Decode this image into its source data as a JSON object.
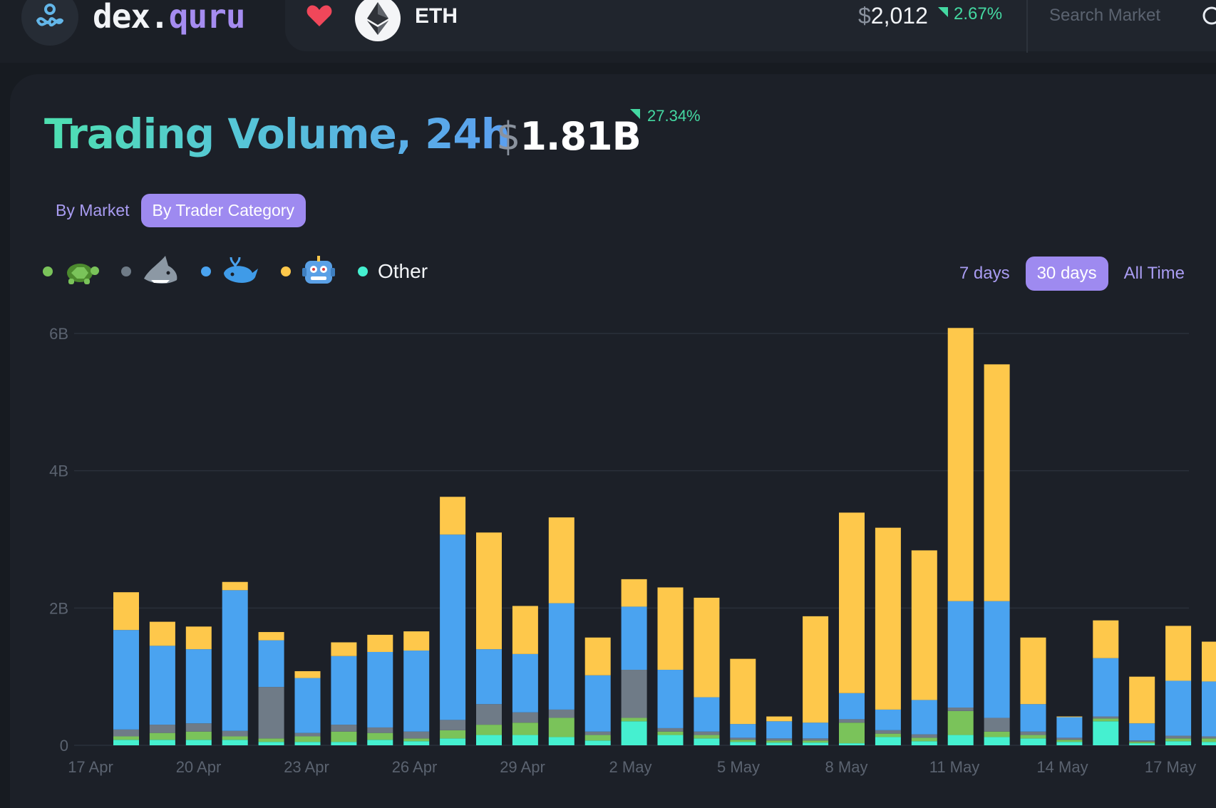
{
  "header": {
    "brand_part1": "dex.",
    "brand_part2": "quru",
    "token_symbol": "ETH",
    "price_currency": "$",
    "price_value": "2,012",
    "price_change": "2.67%",
    "search_placeholder": "Search Market"
  },
  "summary": {
    "title": "Trading Volume, 24h",
    "volume_currency": "$",
    "volume_value": "1.81B",
    "volume_change": "27.34%"
  },
  "view_tabs": [
    {
      "label": "By Market",
      "active": false
    },
    {
      "label": "By Trader Category",
      "active": true
    }
  ],
  "legend": [
    {
      "icon": "turtle-icon",
      "color": "#7ac35a"
    },
    {
      "icon": "shark-icon",
      "color": "#6f7b87"
    },
    {
      "icon": "whale-icon",
      "color": "#4aa3f0"
    },
    {
      "icon": "robot-icon",
      "color": "#fec84b"
    },
    {
      "label": "Other",
      "color": "#45f0d0"
    }
  ],
  "ranges": [
    {
      "label": "7 days",
      "active": false
    },
    {
      "label": "30 days",
      "active": true
    },
    {
      "label": "All Time",
      "active": false
    }
  ],
  "colors": {
    "other": "#45f0d0",
    "turtle": "#7ac35a",
    "shark": "#6f7b87",
    "whale": "#4aa3f0",
    "robot": "#fec84b",
    "positive": "#44d9a2",
    "accent": "#9e8af0"
  },
  "chart_data": {
    "type": "bar",
    "stacked": true,
    "y_ticks": [
      "0",
      "2B",
      "4B",
      "6B"
    ],
    "ylim": [
      0,
      6
    ],
    "grid": true,
    "x_tick_labels": [
      "17 Apr",
      "20 Apr",
      "23 Apr",
      "26 Apr",
      "29 Apr",
      "2 May",
      "5 May",
      "8 May",
      "11 May",
      "14 May",
      "17 May"
    ],
    "categories": [
      "17 Apr",
      "18 Apr",
      "19 Apr",
      "20 Apr",
      "21 Apr",
      "22 Apr",
      "23 Apr",
      "24 Apr",
      "25 Apr",
      "26 Apr",
      "27 Apr",
      "28 Apr",
      "29 Apr",
      "30 Apr",
      "1 May",
      "2 May",
      "3 May",
      "4 May",
      "5 May",
      "6 May",
      "7 May",
      "8 May",
      "9 May",
      "10 May",
      "11 May",
      "12 May",
      "13 May",
      "14 May",
      "15 May",
      "16 May",
      "17 May"
    ],
    "series": [
      {
        "key": "other",
        "values": [
          0.08,
          0.08,
          0.08,
          0.08,
          0.05,
          0.05,
          0.05,
          0.08,
          0.06,
          0.1,
          0.15,
          0.15,
          0.12,
          0.07,
          0.35,
          0.15,
          0.1,
          0.05,
          0.04,
          0.04,
          0.03,
          0.12,
          0.06,
          0.15,
          0.12,
          0.1,
          0.05,
          0.35,
          0.03,
          0.06,
          0.05
        ]
      },
      {
        "key": "turtle",
        "values": [
          0.05,
          0.1,
          0.12,
          0.05,
          0.05,
          0.08,
          0.15,
          0.1,
          0.04,
          0.12,
          0.15,
          0.18,
          0.28,
          0.08,
          0.05,
          0.05,
          0.05,
          0.03,
          0.03,
          0.03,
          0.3,
          0.05,
          0.05,
          0.35,
          0.08,
          0.05,
          0.03,
          0.04,
          0.02,
          0.04,
          0.05
        ]
      },
      {
        "key": "shark",
        "values": [
          0.1,
          0.12,
          0.12,
          0.08,
          0.75,
          0.05,
          0.1,
          0.08,
          0.1,
          0.15,
          0.3,
          0.15,
          0.12,
          0.05,
          0.7,
          0.05,
          0.05,
          0.03,
          0.03,
          0.03,
          0.05,
          0.05,
          0.05,
          0.05,
          0.2,
          0.05,
          0.03,
          0.03,
          0.02,
          0.04,
          0.03
        ]
      },
      {
        "key": "whale",
        "values": [
          1.45,
          1.15,
          1.08,
          2.05,
          0.68,
          0.8,
          1.0,
          1.1,
          1.18,
          2.7,
          0.8,
          0.85,
          1.55,
          0.82,
          0.92,
          0.85,
          0.5,
          0.2,
          0.25,
          0.23,
          0.38,
          0.3,
          0.5,
          1.55,
          1.7,
          0.4,
          0.3,
          0.85,
          0.25,
          0.8,
          0.8
        ]
      },
      {
        "key": "robot",
        "values": [
          0.55,
          0.35,
          0.33,
          0.12,
          0.12,
          0.1,
          0.2,
          0.25,
          0.28,
          0.55,
          1.7,
          0.7,
          1.25,
          0.55,
          0.4,
          1.2,
          1.45,
          0.95,
          0.07,
          1.55,
          2.63,
          2.65,
          2.18,
          3.98,
          3.45,
          0.97,
          0.01,
          0.55,
          0.68,
          0.8,
          0.58
        ]
      }
    ]
  }
}
